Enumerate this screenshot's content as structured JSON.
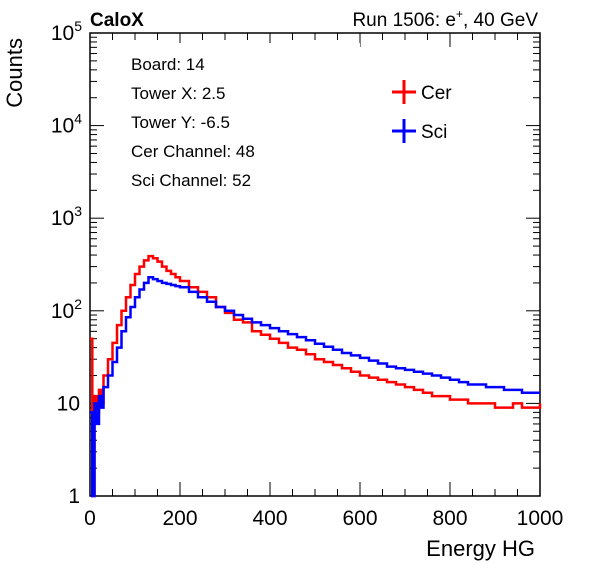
{
  "header": {
    "brand": "CaloX",
    "run_prefix": "Run 1506: e",
    "run_sup": "+",
    "run_suffix": ", 40 GeV"
  },
  "info_box": {
    "lines": [
      "Board: 14",
      "Tower X: 2.5",
      "Tower Y: -6.5",
      "Cer Channel: 48",
      "Sci Channel: 52"
    ]
  },
  "chart_data": {
    "type": "line",
    "title": "",
    "xlabel": "Energy HG",
    "ylabel": "Counts",
    "xlim": [
      0,
      1000
    ],
    "ylim": [
      1,
      100000
    ],
    "yscale": "log",
    "grid": false,
    "legend_position": "top-right",
    "x_ticks": [
      "0",
      "200",
      "400",
      "600",
      "800",
      "1000"
    ],
    "y_ticks": [
      {
        "base": "1",
        "exp": ""
      },
      {
        "base": "10",
        "exp": ""
      },
      {
        "base": "10",
        "exp": "2"
      },
      {
        "base": "10",
        "exp": "3"
      },
      {
        "base": "10",
        "exp": "4"
      },
      {
        "base": "10",
        "exp": "5"
      }
    ],
    "series": [
      {
        "name": "Cer",
        "color": "#ff0000",
        "x": [
          0,
          5,
          10,
          15,
          20,
          25,
          30,
          40,
          50,
          60,
          70,
          80,
          90,
          100,
          110,
          120,
          130,
          140,
          150,
          160,
          170,
          180,
          190,
          200,
          220,
          240,
          260,
          280,
          300,
          320,
          340,
          360,
          380,
          400,
          420,
          440,
          460,
          480,
          500,
          520,
          540,
          560,
          580,
          600,
          620,
          640,
          660,
          680,
          700,
          720,
          740,
          760,
          780,
          800,
          820,
          840,
          860,
          880,
          900,
          920,
          940,
          960,
          980,
          1000
        ],
        "values": [
          50,
          1,
          12,
          8,
          14,
          10,
          20,
          30,
          45,
          70,
          100,
          140,
          190,
          250,
          300,
          350,
          390,
          370,
          340,
          300,
          270,
          250,
          230,
          210,
          180,
          160,
          140,
          110,
          95,
          80,
          75,
          60,
          55,
          50,
          45,
          40,
          38,
          34,
          30,
          28,
          26,
          24,
          22,
          20,
          19,
          18,
          17,
          16,
          15,
          14,
          13,
          12,
          12,
          11,
          11,
          10,
          10,
          10,
          9,
          9,
          10,
          9,
          9,
          10
        ]
      },
      {
        "name": "Sci",
        "color": "#0000ff",
        "x": [
          0,
          5,
          10,
          15,
          20,
          25,
          30,
          40,
          50,
          60,
          70,
          80,
          90,
          100,
          110,
          120,
          130,
          140,
          150,
          160,
          170,
          180,
          190,
          200,
          220,
          240,
          260,
          280,
          300,
          320,
          340,
          360,
          380,
          400,
          420,
          440,
          460,
          480,
          500,
          520,
          540,
          560,
          580,
          600,
          620,
          640,
          660,
          680,
          700,
          720,
          740,
          760,
          780,
          800,
          820,
          840,
          860,
          880,
          900,
          920,
          940,
          960,
          980,
          1000
        ],
        "values": [
          8,
          1,
          10,
          6,
          12,
          9,
          15,
          20,
          28,
          40,
          60,
          85,
          110,
          140,
          170,
          200,
          230,
          220,
          210,
          200,
          195,
          190,
          185,
          180,
          160,
          140,
          125,
          110,
          100,
          90,
          82,
          75,
          70,
          65,
          60,
          56,
          52,
          48,
          44,
          41,
          38,
          35,
          33,
          31,
          29,
          27,
          25,
          24,
          23,
          22,
          21,
          20,
          19,
          18,
          17,
          16,
          16,
          15,
          15,
          14,
          14,
          13,
          13,
          13
        ]
      }
    ]
  }
}
